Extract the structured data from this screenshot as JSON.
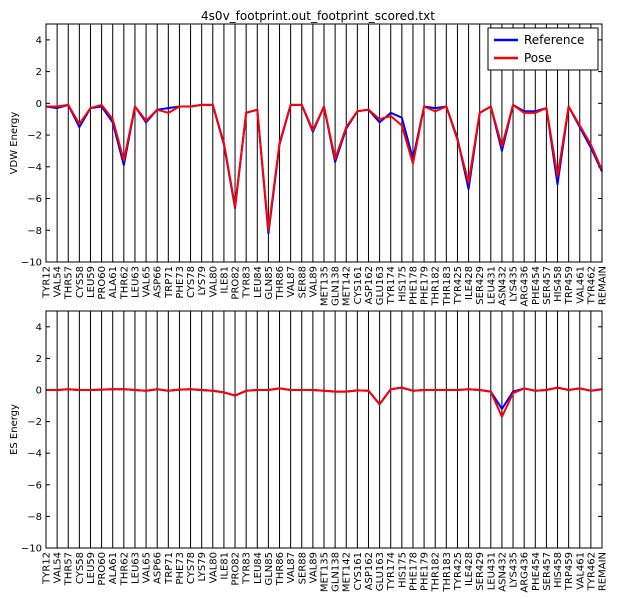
{
  "title": "4s0v_footprint.out_footprint_scored.txt",
  "legend": {
    "position": "top-right",
    "entries": [
      "Reference",
      "Pose"
    ]
  },
  "colors": {
    "reference": "#0000ff",
    "pose": "#ff0000",
    "axis": "#000000",
    "background": "#ffffff"
  },
  "chart_data": [
    {
      "type": "line",
      "title": "4s0v_footprint.out_footprint_scored.txt",
      "ylabel": "VDW Energy",
      "xlabel": "",
      "ylim": [
        -10,
        5
      ],
      "yticks": [
        -10,
        -8,
        -6,
        -4,
        -2,
        0,
        2,
        4
      ],
      "grid": "vertical lines at each residue",
      "legend": "top-right",
      "categories": [
        "TYR12",
        "VAL54",
        "THR57",
        "CYS58",
        "LEU59",
        "PRO60",
        "ALA61",
        "THR62",
        "LEU63",
        "VAL65",
        "ASP66",
        "TRP71",
        "PHE73",
        "CYS78",
        "LYS79",
        "VAL80",
        "ILE81",
        "PRO82",
        "TYR83",
        "LEU84",
        "GLN85",
        "THR86",
        "VAL87",
        "SER88",
        "VAL89",
        "MET135",
        "GLN138",
        "MET142",
        "CYS161",
        "ASP162",
        "GLU163",
        "TYR174",
        "HIS175",
        "PHE178",
        "PHE179",
        "THR182",
        "THR183",
        "TYR425",
        "ILE428",
        "SER429",
        "LEU431",
        "ASN432",
        "LYS435",
        "ARG436",
        "PHE454",
        "SER457",
        "HIS458",
        "TRP459",
        "VAL461",
        "TYR462",
        "REMAIN"
      ],
      "series": [
        {
          "name": "Reference",
          "values": [
            -0.2,
            -0.3,
            -0.1,
            -1.5,
            -0.3,
            -0.2,
            -1.2,
            -3.9,
            -0.2,
            -1.2,
            -0.4,
            -0.3,
            -0.2,
            -0.2,
            -0.1,
            -0.1,
            -2.6,
            -6.6,
            -0.6,
            -0.4,
            -8.2,
            -2.6,
            -0.1,
            -0.1,
            -1.8,
            -0.2,
            -3.7,
            -1.6,
            -0.5,
            -0.4,
            -1.2,
            -0.6,
            -0.9,
            -3.5,
            -0.2,
            -0.3,
            -0.2,
            -2.2,
            -5.4,
            -0.6,
            -0.2,
            -3.0,
            -0.1,
            -0.5,
            -0.5,
            -0.3,
            -5.1,
            -0.2,
            -1.5,
            -2.8,
            -4.3
          ]
        },
        {
          "name": "Pose",
          "values": [
            -0.2,
            -0.2,
            -0.1,
            -1.3,
            -0.3,
            -0.1,
            -1.0,
            -3.6,
            -0.2,
            -1.1,
            -0.4,
            -0.6,
            -0.2,
            -0.2,
            -0.1,
            -0.1,
            -2.5,
            -6.5,
            -0.6,
            -0.4,
            -8.0,
            -2.5,
            -0.1,
            -0.1,
            -1.7,
            -0.2,
            -3.5,
            -1.5,
            -0.5,
            -0.4,
            -1.0,
            -0.8,
            -1.4,
            -3.8,
            -0.2,
            -0.5,
            -0.2,
            -2.3,
            -5.0,
            -0.6,
            -0.2,
            -2.7,
            -0.1,
            -0.6,
            -0.6,
            -0.3,
            -4.6,
            -0.2,
            -1.4,
            -2.6,
            -4.2
          ]
        }
      ]
    },
    {
      "type": "line",
      "title": "",
      "ylabel": "ES Energy",
      "xlabel": "",
      "ylim": [
        -10,
        5
      ],
      "yticks": [
        -10,
        -8,
        -6,
        -4,
        -2,
        0,
        2,
        4
      ],
      "grid": "vertical lines at each residue",
      "categories": [
        "TYR12",
        "VAL54",
        "THR57",
        "CYS58",
        "LEU59",
        "PRO60",
        "ALA61",
        "THR62",
        "LEU63",
        "VAL65",
        "ASP66",
        "TRP71",
        "PHE73",
        "CYS78",
        "LYS79",
        "VAL80",
        "ILE81",
        "PRO82",
        "TYR83",
        "LEU84",
        "GLN85",
        "THR86",
        "VAL87",
        "SER88",
        "VAL89",
        "MET135",
        "GLN138",
        "MET142",
        "CYS161",
        "ASP162",
        "GLU163",
        "TYR174",
        "HIS175",
        "PHE178",
        "PHE179",
        "THR182",
        "THR183",
        "TYR425",
        "ILE428",
        "SER429",
        "LEU431",
        "ASN432",
        "LYS435",
        "ARG436",
        "PHE454",
        "SER457",
        "HIS458",
        "TRP459",
        "VAL461",
        "TYR462",
        "REMAIN"
      ],
      "series": [
        {
          "name": "Reference",
          "values": [
            0.0,
            0.0,
            0.05,
            0.0,
            0.0,
            0.02,
            0.05,
            0.05,
            0.0,
            -0.05,
            0.05,
            -0.05,
            0.02,
            0.05,
            0.0,
            -0.05,
            -0.15,
            -0.35,
            -0.05,
            0.0,
            0.0,
            0.1,
            0.0,
            0.0,
            0.0,
            -0.05,
            -0.1,
            -0.1,
            -0.02,
            -0.05,
            -0.9,
            0.05,
            0.15,
            -0.05,
            0.0,
            0.0,
            0.0,
            0.0,
            0.05,
            0.0,
            -0.1,
            -1.2,
            -0.1,
            0.1,
            -0.05,
            0.0,
            0.15,
            0.0,
            0.1,
            -0.05,
            0.05
          ]
        },
        {
          "name": "Pose",
          "values": [
            0.0,
            0.0,
            0.05,
            0.0,
            0.0,
            0.02,
            0.05,
            0.05,
            0.0,
            -0.05,
            0.05,
            -0.05,
            0.02,
            0.05,
            0.0,
            -0.05,
            -0.15,
            -0.35,
            -0.05,
            0.0,
            0.0,
            0.1,
            0.0,
            0.0,
            0.0,
            -0.05,
            -0.1,
            -0.1,
            -0.02,
            -0.05,
            -0.9,
            0.05,
            0.15,
            -0.05,
            0.0,
            0.0,
            0.0,
            0.0,
            0.05,
            0.0,
            -0.1,
            -1.7,
            -0.2,
            0.1,
            -0.05,
            0.0,
            0.15,
            0.0,
            0.1,
            -0.05,
            0.05
          ]
        }
      ]
    }
  ]
}
